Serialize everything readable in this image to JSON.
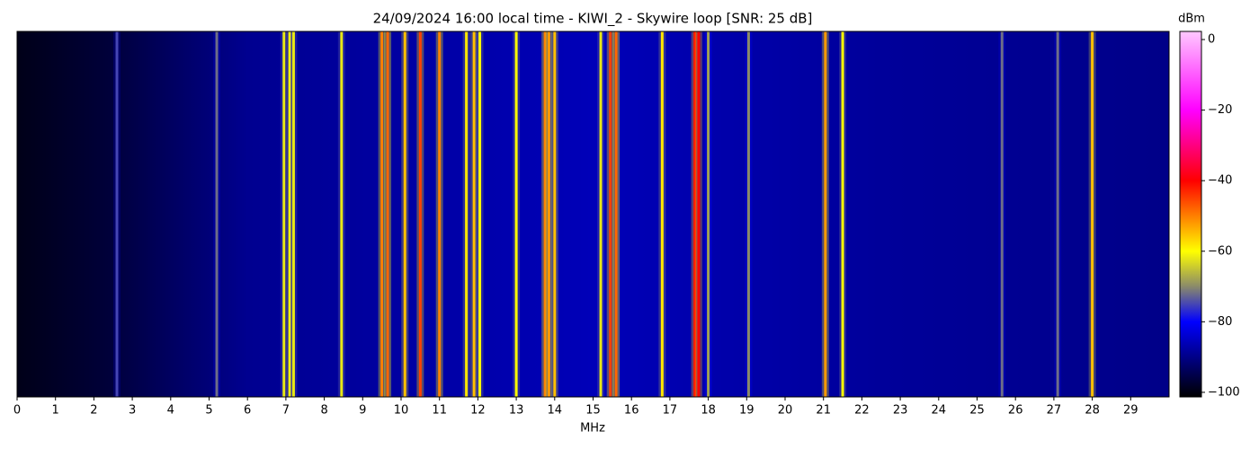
{
  "chart_data": {
    "type": "waterfall",
    "title": "24/09/2024 16:00 local time - KIWI_2 - Skywire loop [SNR: 25 dB]",
    "x_label": "MHz",
    "colorbar_label": "dBm",
    "xlim": [
      0,
      30
    ],
    "xticks": [
      0,
      1,
      2,
      3,
      4,
      5,
      6,
      7,
      8,
      9,
      10,
      11,
      12,
      13,
      14,
      15,
      16,
      17,
      18,
      19,
      20,
      21,
      22,
      23,
      24,
      25,
      26,
      27,
      28,
      29
    ],
    "clim": [
      -101.3,
      2.3
    ],
    "cticks": [
      {
        "value": 0,
        "label": "0"
      },
      {
        "value": -20,
        "label": "−20"
      },
      {
        "value": -40,
        "label": "−40"
      },
      {
        "value": -60,
        "label": "−60"
      },
      {
        "value": -80,
        "label": "−80"
      },
      {
        "value": -100,
        "label": "−100"
      }
    ],
    "colormap": [
      {
        "value": -101.3,
        "color": "#000000"
      },
      {
        "value": -80,
        "color": "#0000ff"
      },
      {
        "value": -70,
        "color": "#8a8a6a"
      },
      {
        "value": -60,
        "color": "#ffff00"
      },
      {
        "value": -40,
        "color": "#ff0000"
      },
      {
        "value": -20,
        "color": "#ff00ff"
      },
      {
        "value": 2.3,
        "color": "#ffc8ff"
      }
    ],
    "signals": {
      "freqs": [
        2.6,
        5.2,
        6.95,
        7.1,
        7.2,
        8.45,
        9.5,
        9.65,
        10.1,
        10.5,
        11.0,
        11.7,
        11.9,
        12.05,
        13.0,
        13.75,
        13.85,
        14.0,
        15.2,
        15.45,
        15.6,
        16.8,
        17.65,
        17.75,
        18.0,
        19.05,
        21.05,
        21.5,
        25.65,
        27.1,
        28.0
      ],
      "levels": [
        -75,
        -72,
        -62,
        -60,
        -62,
        -62,
        -50,
        -48,
        -55,
        -45,
        -50,
        -58,
        -55,
        -60,
        -60,
        -50,
        -52,
        -55,
        -62,
        -45,
        -48,
        -58,
        -42,
        -40,
        -68,
        -70,
        -52,
        -60,
        -72,
        -72,
        -55
      ]
    }
  }
}
